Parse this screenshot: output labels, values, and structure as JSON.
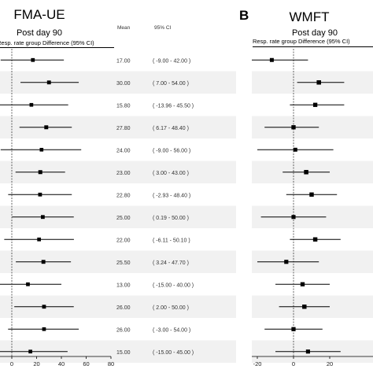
{
  "chart_data": [
    {
      "type": "forest",
      "panel_label": "",
      "title": "FMA-UE",
      "subtitle": "Post day 90",
      "header": "Resp. rate group Difference (95% CI)",
      "column_headers": [
        "Mean",
        "95% CI"
      ],
      "xlim": [
        -5,
        80
      ],
      "xticks": [
        0,
        20,
        40,
        60,
        80
      ],
      "reference_line": 0,
      "rows": [
        {
          "mean": 17.0,
          "lower": -9.0,
          "upper": 42.0,
          "mean_label": "17.00",
          "ci_label": "( -9.00 - 42.00 )"
        },
        {
          "mean": 30.0,
          "lower": 7.0,
          "upper": 54.0,
          "mean_label": "30.00",
          "ci_label": "( 7.00 - 54.00 )"
        },
        {
          "mean": 15.8,
          "lower": -13.96,
          "upper": 45.5,
          "mean_label": "15.80",
          "ci_label": "( -13.96 - 45.50 )"
        },
        {
          "mean": 27.8,
          "lower": 6.17,
          "upper": 48.4,
          "mean_label": "27.80",
          "ci_label": "( 6.17 - 48.40 )"
        },
        {
          "mean": 24.0,
          "lower": -9.0,
          "upper": 56.0,
          "mean_label": "24.00",
          "ci_label": "( -9.00 - 56.00 )"
        },
        {
          "mean": 23.0,
          "lower": 3.0,
          "upper": 43.0,
          "mean_label": "23.00",
          "ci_label": "( 3.00 - 43.00 )"
        },
        {
          "mean": 22.8,
          "lower": -2.93,
          "upper": 48.4,
          "mean_label": "22.80",
          "ci_label": "( -2.93 - 48.40 )"
        },
        {
          "mean": 25.0,
          "lower": 0.19,
          "upper": 50.0,
          "mean_label": "25.00",
          "ci_label": "( 0.19 - 50.00 )"
        },
        {
          "mean": 22.0,
          "lower": -6.11,
          "upper": 50.1,
          "mean_label": "22.00",
          "ci_label": "( -6.11 - 50.10 )"
        },
        {
          "mean": 25.5,
          "lower": 3.24,
          "upper": 47.7,
          "mean_label": "25.50",
          "ci_label": "( 3.24 - 47.70 )"
        },
        {
          "mean": 13.0,
          "lower": -15.0,
          "upper": 40.0,
          "mean_label": "13.00",
          "ci_label": "( -15.00 - 40.00 )"
        },
        {
          "mean": 26.0,
          "lower": 2.0,
          "upper": 50.0,
          "mean_label": "26.00",
          "ci_label": "( 2.00 - 50.00 )"
        },
        {
          "mean": 26.0,
          "lower": -3.0,
          "upper": 54.0,
          "mean_label": "26.00",
          "ci_label": "( -3.00 - 54.00 )"
        },
        {
          "mean": 15.0,
          "lower": -15.0,
          "upper": 45.0,
          "mean_label": "15.00",
          "ci_label": "( -15.00 - 45.00 )"
        }
      ]
    },
    {
      "type": "forest",
      "panel_label": "B",
      "title": "WMFT",
      "subtitle": "Post day 90",
      "header": "Resp. rate group Difference (95% CI)",
      "xlim": [
        -25,
        60
      ],
      "xticks": [
        -20,
        0,
        20
      ],
      "reference_line": 0,
      "rows": [
        {
          "mean": -12,
          "lower": -32,
          "upper": 8
        },
        {
          "mean": 14,
          "lower": 2,
          "upper": 28
        },
        {
          "mean": 12,
          "lower": -2,
          "upper": 28
        },
        {
          "mean": 0,
          "lower": -16,
          "upper": 14
        },
        {
          "mean": 1,
          "lower": -20,
          "upper": 22
        },
        {
          "mean": 7,
          "lower": -6,
          "upper": 20
        },
        {
          "mean": 10,
          "lower": -4,
          "upper": 24
        },
        {
          "mean": 0,
          "lower": -18,
          "upper": 18
        },
        {
          "mean": 12,
          "lower": -2,
          "upper": 26
        },
        {
          "mean": -4,
          "lower": -20,
          "upper": 14
        },
        {
          "mean": 5,
          "lower": -10,
          "upper": 20
        },
        {
          "mean": 6,
          "lower": -8,
          "upper": 20
        },
        {
          "mean": 0,
          "lower": -16,
          "upper": 16
        },
        {
          "mean": 8,
          "lower": -10,
          "upper": 26
        }
      ]
    }
  ]
}
